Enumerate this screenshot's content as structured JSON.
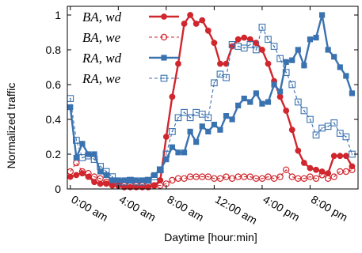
{
  "chart_data": {
    "type": "line",
    "xlabel": "Daytime [hour:min]",
    "ylabel": "Normalized traffic",
    "xlim": [
      -0.25,
      24
    ],
    "ylim": [
      0,
      1.05
    ],
    "x_tick_values": [
      0,
      4,
      8,
      12,
      16,
      20
    ],
    "x_tick_labels": [
      "0:00 am",
      "4:00 am",
      "8:00 am",
      "12:00 am",
      "4:00 pm",
      "8:00 pm"
    ],
    "y_tick_values": [
      0,
      0.2,
      0.4,
      0.6,
      0.8,
      1
    ],
    "y_tick_labels": [
      "0",
      "0.2",
      "0.4",
      "0.6",
      "0.8",
      "1"
    ],
    "grid": false,
    "legend_position": "top-left",
    "x": [
      0,
      0.5,
      1,
      1.5,
      2,
      2.5,
      3,
      3.5,
      4,
      4.5,
      5,
      5.5,
      6,
      6.5,
      7,
      7.5,
      8,
      8.5,
      9,
      9.5,
      10,
      10.5,
      11,
      11.5,
      12,
      12.5,
      13,
      13.5,
      14,
      14.5,
      15,
      15.5,
      16,
      16.5,
      17,
      17.5,
      18,
      18.5,
      19,
      19.5,
      20,
      20.5,
      21,
      21.5,
      22,
      22.5,
      23,
      23.5
    ],
    "series": [
      {
        "name": "BA, wd",
        "color": "#d0262d",
        "style": "solid",
        "marker": "filled-circle",
        "values": [
          0.07,
          0.08,
          0.09,
          0.07,
          0.04,
          0.03,
          0.03,
          0.02,
          0.02,
          0.01,
          0.01,
          0.01,
          0.01,
          0.01,
          0.02,
          0.05,
          0.3,
          0.53,
          0.72,
          0.95,
          1.0,
          0.95,
          0.97,
          0.91,
          0.84,
          0.72,
          0.72,
          0.82,
          0.86,
          0.87,
          0.86,
          0.84,
          0.8,
          0.72,
          0.62,
          0.53,
          0.45,
          0.34,
          0.22,
          0.15,
          0.12,
          0.11,
          0.1,
          0.09,
          0.19,
          0.19,
          0.19,
          0.13
        ]
      },
      {
        "name": "BA, we",
        "color": "#d0262d",
        "style": "dashed",
        "marker": "open-circle",
        "values": [
          0.1,
          0.15,
          0.1,
          0.09,
          0.07,
          0.06,
          0.04,
          0.03,
          0.02,
          0.02,
          0.02,
          0.02,
          0.02,
          0.02,
          0.02,
          0.02,
          0.03,
          0.05,
          0.06,
          0.06,
          0.07,
          0.07,
          0.07,
          0.07,
          0.06,
          0.06,
          0.07,
          0.06,
          0.07,
          0.07,
          0.07,
          0.06,
          0.06,
          0.07,
          0.06,
          0.07,
          0.11,
          0.07,
          0.06,
          0.06,
          0.07,
          0.06,
          0.08,
          0.06,
          0.07,
          0.1,
          0.1,
          0.11
        ]
      },
      {
        "name": "RA, wd",
        "color": "#3a72b0",
        "style": "solid",
        "marker": "filled-square",
        "values": [
          0.47,
          0.18,
          0.26,
          0.2,
          0.2,
          0.1,
          0.08,
          0.05,
          0.05,
          0.05,
          0.05,
          0.05,
          0.05,
          0.05,
          0.08,
          0.11,
          0.17,
          0.24,
          0.21,
          0.21,
          0.33,
          0.27,
          0.36,
          0.33,
          0.37,
          0.34,
          0.42,
          0.4,
          0.48,
          0.52,
          0.5,
          0.55,
          0.49,
          0.5,
          0.6,
          0.56,
          0.73,
          0.74,
          0.8,
          0.71,
          0.86,
          0.87,
          1.0,
          0.8,
          0.76,
          0.7,
          0.65,
          0.55
        ]
      },
      {
        "name": "RA, we",
        "color": "#3a72b0",
        "style": "dashed",
        "marker": "open-square",
        "values": [
          0.52,
          0.28,
          0.18,
          0.19,
          0.17,
          0.13,
          0.1,
          0.07,
          0.04,
          0.04,
          0.05,
          0.04,
          0.04,
          0.05,
          0.07,
          0.11,
          0.2,
          0.33,
          0.41,
          0.44,
          0.41,
          0.44,
          0.43,
          0.41,
          0.61,
          0.66,
          0.64,
          0.83,
          0.82,
          0.81,
          0.83,
          0.8,
          0.93,
          0.86,
          0.82,
          0.75,
          0.67,
          0.6,
          0.5,
          0.45,
          0.4,
          0.31,
          0.35,
          0.36,
          0.38,
          0.32,
          0.3,
          0.2
        ]
      }
    ]
  }
}
